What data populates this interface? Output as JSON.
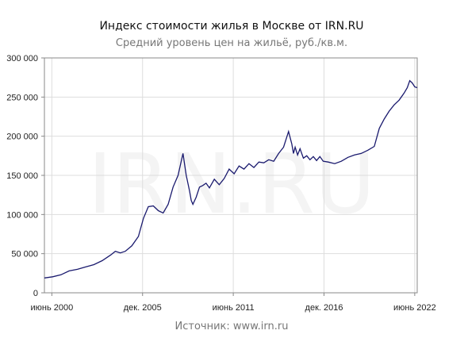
{
  "chart_data": {
    "type": "line",
    "title": "Индекс стоимости жилья в Москве от IRN.RU",
    "subtitle": "Средний уровень цен на жильё, руб./кв.м.",
    "source": "Источник: www.irn.ru",
    "watermark": "IRN.RU",
    "xlabel": "",
    "ylabel": "",
    "xlim": [
      2000.0,
      2022.6
    ],
    "ylim": [
      0,
      300000
    ],
    "y_ticks": [
      0,
      50000,
      100000,
      150000,
      200000,
      250000,
      300000
    ],
    "y_tick_labels": [
      "0",
      "50 000",
      "100 000",
      "150 000",
      "200 000",
      "250 000",
      "300 000"
    ],
    "x_ticks": [
      {
        "x": 2000.45,
        "label": "июнь 2000"
      },
      {
        "x": 2005.95,
        "label": "дек. 2005"
      },
      {
        "x": 2011.45,
        "label": "июнь 2011"
      },
      {
        "x": 2016.95,
        "label": "дек. 2016"
      },
      {
        "x": 2022.45,
        "label": "июнь 2022"
      }
    ],
    "grid": true,
    "line_color": "#1a1a6e",
    "series": [
      {
        "x": [
          2000.0,
          2000.5,
          2001.0,
          2001.5,
          2002.0,
          2002.5,
          2003.0,
          2003.5,
          2004.0,
          2004.3,
          2004.6,
          2004.9,
          2005.3,
          2005.7,
          2006.0,
          2006.3,
          2006.6,
          2006.9,
          2007.2,
          2007.5,
          2007.8,
          2008.1,
          2008.4,
          2008.6,
          2008.8,
          2008.9,
          2009.0,
          2009.2,
          2009.4,
          2009.6,
          2009.8,
          2010.0,
          2010.3,
          2010.6,
          2010.9,
          2011.2,
          2011.5,
          2011.8,
          2012.1,
          2012.4,
          2012.7,
          2013.0,
          2013.3,
          2013.6,
          2013.9,
          2014.2,
          2014.5,
          2014.8,
          2015.0,
          2015.1,
          2015.2,
          2015.35,
          2015.5,
          2015.7,
          2015.9,
          2016.1,
          2016.3,
          2016.5,
          2016.7,
          2016.9,
          2017.2,
          2017.6,
          2018.0,
          2018.4,
          2018.8,
          2019.2,
          2019.6,
          2020.0,
          2020.3,
          2020.6,
          2020.9,
          2021.2,
          2021.5,
          2021.8,
          2022.0,
          2022.15,
          2022.3,
          2022.45,
          2022.6
        ],
        "y": [
          19000,
          20500,
          23000,
          28000,
          30000,
          33000,
          36000,
          41000,
          48000,
          53000,
          51000,
          53000,
          60000,
          72000,
          95000,
          110000,
          111000,
          105000,
          102000,
          113000,
          135000,
          150000,
          178000,
          150000,
          130000,
          118000,
          113000,
          122000,
          135000,
          137000,
          140000,
          134000,
          145000,
          138000,
          146000,
          158000,
          152000,
          162000,
          158000,
          165000,
          160000,
          167000,
          166000,
          170000,
          168000,
          178000,
          186000,
          206000,
          190000,
          178000,
          186000,
          176000,
          184000,
          172000,
          175000,
          170000,
          174000,
          169000,
          174000,
          168000,
          167000,
          165000,
          168000,
          173000,
          176000,
          178000,
          182000,
          187000,
          210000,
          222000,
          232000,
          240000,
          246000,
          255000,
          262000,
          271000,
          268000,
          263000,
          262000
        ]
      }
    ]
  }
}
